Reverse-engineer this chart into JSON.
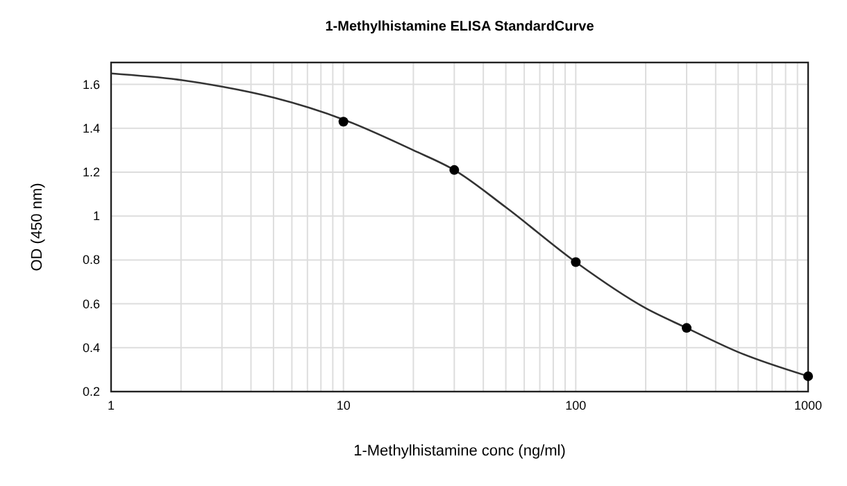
{
  "chart_data": {
    "type": "scatter",
    "title": "1-Methylhistamine ELISA StandardCurve",
    "xlabel": "1-Methylhistamine conc (ng/ml)",
    "ylabel": "OD (450 nm)",
    "log": "x",
    "grid": true,
    "xlim": [
      1,
      1000
    ],
    "ylim": [
      0.2,
      1.7
    ],
    "xticks": [
      1,
      {
        "value": 2,
        "label": null
      },
      {
        "value": 3,
        "label": null
      },
      {
        "value": 4,
        "label": null
      },
      {
        "value": 5,
        "label": null
      },
      {
        "value": 6,
        "label": null
      },
      {
        "value": 7,
        "label": null
      },
      {
        "value": 8,
        "label": null
      },
      {
        "value": 9,
        "label": null
      },
      10,
      {
        "value": 20,
        "label": null
      },
      {
        "value": 30,
        "label": null
      },
      {
        "value": 40,
        "label": null
      },
      {
        "value": 50,
        "label": null
      },
      {
        "value": 60,
        "label": null
      },
      {
        "value": 70,
        "label": null
      },
      {
        "value": 80,
        "label": null
      },
      {
        "value": 90,
        "label": null
      },
      100,
      {
        "value": 200,
        "label": null
      },
      {
        "value": 300,
        "label": null
      },
      {
        "value": 400,
        "label": null
      },
      {
        "value": 500,
        "label": null
      },
      {
        "value": 600,
        "label": null
      },
      {
        "value": 700,
        "label": null
      },
      {
        "value": 800,
        "label": null
      },
      {
        "value": 900,
        "label": null
      },
      1000
    ],
    "yticks": [
      0.2,
      0.4,
      0.6,
      0.8,
      1,
      1.2,
      1.4,
      1.6
    ],
    "series": [
      {
        "type": "line",
        "color": "#333333",
        "marker": "none",
        "x": [
          1,
          2,
          3,
          5,
          10,
          20,
          30,
          50,
          100,
          200,
          300,
          500,
          1000
        ],
        "values": [
          1.65,
          1.62,
          1.59,
          1.54,
          1.44,
          1.3,
          1.21,
          1.04,
          0.79,
          0.58,
          0.49,
          0.38,
          0.27
        ]
      },
      {
        "type": "scatter",
        "color": "#000000",
        "marker": "circle",
        "x": [
          10,
          30,
          100,
          300,
          1000
        ],
        "values": [
          1.43,
          1.21,
          0.79,
          0.49,
          0.27
        ]
      }
    ]
  }
}
